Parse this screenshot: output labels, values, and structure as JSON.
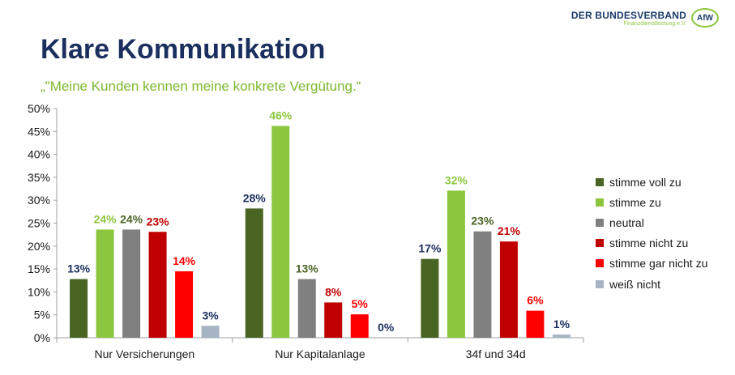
{
  "header": {
    "title": "Klare Kommunikation",
    "subtitle": "„\"Meine Kunden kennen meine konkrete Vergütung.“"
  },
  "logo": {
    "main": "DER BUNDESVERBAND",
    "sub": "Finanzdienstleistung e.V.",
    "badge": "AfW"
  },
  "chart_data": {
    "type": "bar",
    "categories": [
      "Nur Versicherungen",
      "Nur Kapitalanlage",
      "34f und 34d"
    ],
    "series": [
      {
        "name": "stimme voll zu",
        "color": "#4a6423",
        "label_color": "#1b2f5e",
        "values": [
          12.8,
          28.2,
          17.2
        ],
        "labels": [
          "13%",
          "28%",
          "17%"
        ]
      },
      {
        "name": "stimme zu",
        "color": "#8cc63f",
        "label_color": "#8cc63f",
        "values": [
          23.6,
          46.2,
          32.1
        ],
        "labels": [
          "24%",
          "46%",
          "32%"
        ]
      },
      {
        "name": "neutral",
        "color": "#808080",
        "label_color": "#4a6423",
        "values": [
          23.6,
          12.8,
          23.2
        ],
        "labels": [
          "24%",
          "13%",
          "23%"
        ]
      },
      {
        "name": "stimme nicht zu",
        "color": "#c00000",
        "label_color": "#c00000",
        "values": [
          23.1,
          7.7,
          21.0
        ],
        "labels": [
          "23%",
          "8%",
          "21%"
        ]
      },
      {
        "name": "stimme gar nicht zu",
        "color": "#ff0000",
        "label_color": "#ff0000",
        "values": [
          14.5,
          5.1,
          5.9
        ],
        "labels": [
          "14%",
          "5%",
          "6%"
        ]
      },
      {
        "name": "weiß nicht",
        "color": "#a6b4c4",
        "label_color": "#1b2f5e",
        "values": [
          2.6,
          0,
          0.7
        ],
        "labels": [
          "3%",
          "0%",
          "1%"
        ]
      }
    ],
    "ylim": [
      0,
      50
    ],
    "y_ticks": [
      "0%",
      "5%",
      "10%",
      "15%",
      "20%",
      "25%",
      "30%",
      "35%",
      "40%",
      "45%",
      "50%"
    ],
    "grid": false,
    "legend_position": "right"
  }
}
